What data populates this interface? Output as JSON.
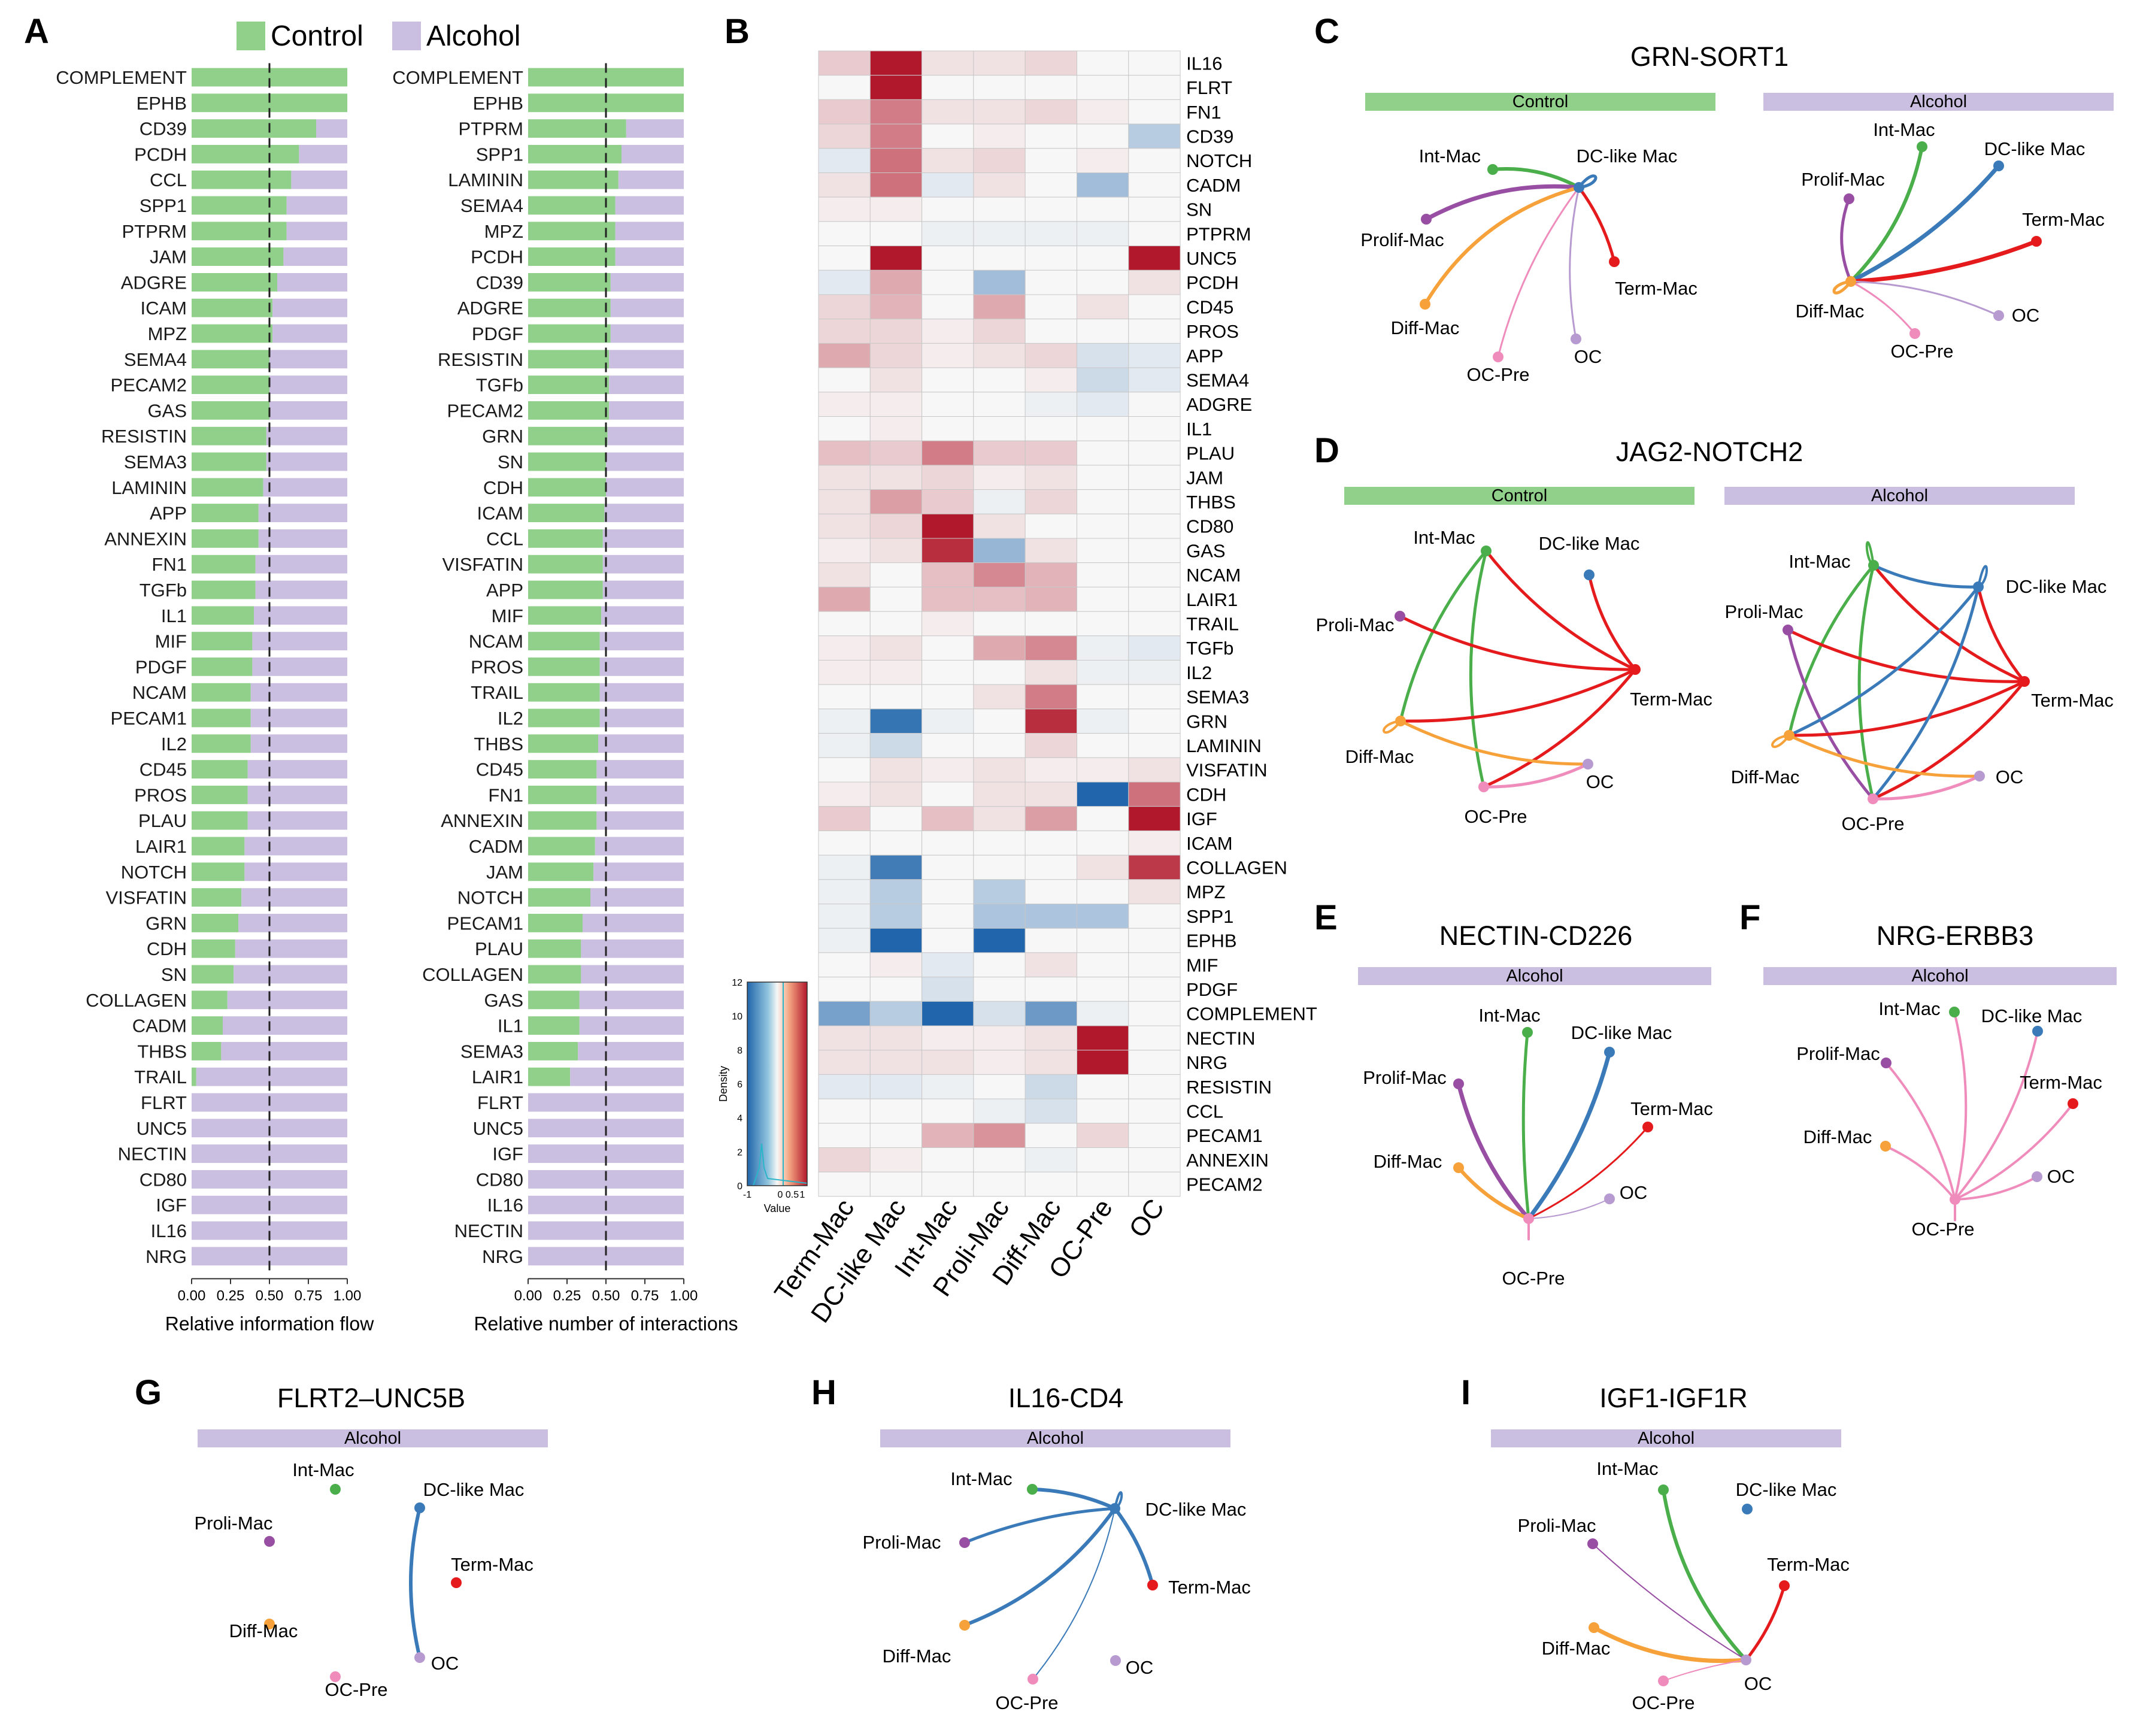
{
  "colors": {
    "control": "#90d08a",
    "alcohol": "#cabfe0",
    "net": {
      "Int-Mac": "#4aae4a",
      "DC-like Mac": "#3a7ab8",
      "Term-Mac": "#e41a1c",
      "Prolif-Mac": "#984ea3",
      "Proli-Mac": "#984ea3",
      "Diff-Mac": "#f6a13a",
      "OC-Pre": "#f08cbc",
      "OC": "#b79ad0"
    }
  },
  "legend": {
    "control": "Control",
    "alcohol": "Alcohol"
  },
  "panel_letters": {
    "A": "A",
    "B": "B",
    "C": "C",
    "D": "D",
    "E": "E",
    "F": "F",
    "G": "G",
    "H": "H",
    "I": "I"
  },
  "chart_data": [
    {
      "id": "A1",
      "type": "bar",
      "stacked": true,
      "orientation": "horizontal",
      "xlabel": "Relative information flow",
      "xlim": [
        0,
        1
      ],
      "xticks": [
        "0.00",
        "0.25",
        "0.50",
        "0.75",
        "1.00"
      ],
      "reference_line": 0.5,
      "categories": [
        "COMPLEMENT",
        "EPHB",
        "CD39",
        "PCDH",
        "CCL",
        "SPP1",
        "PTPRM",
        "JAM",
        "ADGRE",
        "ICAM",
        "MPZ",
        "SEMA4",
        "PECAM2",
        "GAS",
        "RESISTIN",
        "SEMA3",
        "LAMININ",
        "APP",
        "ANNEXIN",
        "FN1",
        "TGFb",
        "IL1",
        "MIF",
        "PDGF",
        "NCAM",
        "PECAM1",
        "IL2",
        "CD45",
        "PROS",
        "PLAU",
        "LAIR1",
        "NOTCH",
        "VISFATIN",
        "GRN",
        "CDH",
        "SN",
        "COLLAGEN",
        "CADM",
        "THBS",
        "TRAIL",
        "FLRT",
        "UNC5",
        "NECTIN",
        "CD80",
        "IGF",
        "IL16",
        "NRG"
      ],
      "series": [
        {
          "name": "Control",
          "values": [
            1.0,
            1.0,
            0.8,
            0.69,
            0.64,
            0.61,
            0.61,
            0.59,
            0.55,
            0.52,
            0.52,
            0.5,
            0.5,
            0.5,
            0.48,
            0.48,
            0.46,
            0.43,
            0.43,
            0.41,
            0.41,
            0.4,
            0.39,
            0.39,
            0.38,
            0.38,
            0.38,
            0.36,
            0.36,
            0.36,
            0.34,
            0.34,
            0.32,
            0.3,
            0.28,
            0.27,
            0.23,
            0.2,
            0.19,
            0.03,
            0,
            0,
            0,
            0,
            0,
            0,
            0
          ]
        },
        {
          "name": "Alcohol",
          "values": [
            0.0,
            0.0,
            0.2,
            0.31,
            0.36,
            0.39,
            0.39,
            0.41,
            0.45,
            0.48,
            0.48,
            0.5,
            0.5,
            0.5,
            0.52,
            0.52,
            0.54,
            0.57,
            0.57,
            0.59,
            0.59,
            0.6,
            0.61,
            0.61,
            0.62,
            0.62,
            0.62,
            0.64,
            0.64,
            0.64,
            0.66,
            0.66,
            0.68,
            0.7,
            0.72,
            0.73,
            0.77,
            0.8,
            0.81,
            0.97,
            1,
            1,
            1,
            1,
            1,
            1,
            1
          ]
        }
      ]
    },
    {
      "id": "A2",
      "type": "bar",
      "stacked": true,
      "orientation": "horizontal",
      "xlabel": "Relative number of interactions",
      "xlim": [
        0,
        1
      ],
      "xticks": [
        "0.00",
        "0.25",
        "0.50",
        "0.75",
        "1.00"
      ],
      "reference_line": 0.5,
      "categories": [
        "COMPLEMENT",
        "EPHB",
        "PTPRM",
        "SPP1",
        "LAMININ",
        "SEMA4",
        "MPZ",
        "PCDH",
        "CD39",
        "ADGRE",
        "PDGF",
        "RESISTIN",
        "TGFb",
        "PECAM2",
        "GRN",
        "SN",
        "CDH",
        "ICAM",
        "CCL",
        "VISFATIN",
        "APP",
        "MIF",
        "NCAM",
        "PROS",
        "TRAIL",
        "IL2",
        "THBS",
        "CD45",
        "FN1",
        "ANNEXIN",
        "CADM",
        "JAM",
        "NOTCH",
        "PECAM1",
        "PLAU",
        "COLLAGEN",
        "GAS",
        "IL1",
        "SEMA3",
        "LAIR1",
        "FLRT",
        "UNC5",
        "IGF",
        "CD80",
        "IL16",
        "NECTIN",
        "NRG"
      ],
      "series": [
        {
          "name": "Control",
          "values": [
            1.0,
            1.0,
            0.63,
            0.6,
            0.58,
            0.56,
            0.56,
            0.56,
            0.53,
            0.53,
            0.53,
            0.52,
            0.52,
            0.52,
            0.51,
            0.5,
            0.5,
            0.49,
            0.48,
            0.48,
            0.48,
            0.47,
            0.46,
            0.46,
            0.46,
            0.46,
            0.45,
            0.44,
            0.44,
            0.44,
            0.43,
            0.42,
            0.4,
            0.35,
            0.34,
            0.34,
            0.33,
            0.33,
            0.32,
            0.27,
            0,
            0,
            0,
            0,
            0,
            0,
            0
          ]
        },
        {
          "name": "Alcohol",
          "values": [
            0.0,
            0.0,
            0.37,
            0.4,
            0.42,
            0.44,
            0.44,
            0.44,
            0.47,
            0.47,
            0.47,
            0.48,
            0.48,
            0.48,
            0.49,
            0.5,
            0.5,
            0.51,
            0.52,
            0.52,
            0.52,
            0.53,
            0.54,
            0.54,
            0.54,
            0.54,
            0.55,
            0.56,
            0.56,
            0.56,
            0.57,
            0.58,
            0.6,
            0.65,
            0.66,
            0.66,
            0.67,
            0.67,
            0.68,
            0.73,
            1,
            1,
            1,
            1,
            1,
            1,
            1
          ]
        }
      ]
    },
    {
      "id": "B",
      "type": "heatmap",
      "columns": [
        "Term-Mac",
        "DC-like Mac",
        "Int-Mac",
        "Proli-Mac",
        "Diff-Mac",
        "OC-Pre",
        "OC"
      ],
      "rows": [
        "IL16",
        "FLRT",
        "FN1",
        "CD39",
        "NOTCH",
        "CADM",
        "SN",
        "PTPRM",
        "UNC5",
        "PCDH",
        "CD45",
        "PROS",
        "APP",
        "SEMA4",
        "ADGRE",
        "IL1",
        "PLAU",
        "JAM",
        "THBS",
        "CD80",
        "GAS",
        "NCAM",
        "LAIR1",
        "TRAIL",
        "TGFb",
        "IL2",
        "SEMA3",
        "GRN",
        "LAMININ",
        "VISFATIN",
        "CDH",
        "IGF",
        "ICAM",
        "COLLAGEN",
        "MPZ",
        "SPP1",
        "EPHB",
        "MIF",
        "PDGF",
        "COMPLEMENT",
        "NECTIN",
        "NRG",
        "RESISTIN",
        "CCL",
        "PECAM1",
        "ANNEXIN",
        "PECAM2"
      ],
      "values": [
        [
          0.2,
          1.0,
          0.1,
          0.1,
          0.15,
          0,
          0
        ],
        [
          0,
          1.0,
          0,
          0,
          0,
          0,
          0
        ],
        [
          0.2,
          0.55,
          0.1,
          0.1,
          0.15,
          0.05,
          0
        ],
        [
          0.15,
          0.55,
          0,
          0.05,
          0,
          0,
          -0.3
        ],
        [
          -0.1,
          0.6,
          0.1,
          0.15,
          0,
          0.05,
          0
        ],
        [
          0.1,
          0.6,
          -0.1,
          0.1,
          0,
          -0.4,
          0
        ],
        [
          0.05,
          0.05,
          0,
          0,
          0,
          0,
          0
        ],
        [
          0,
          0,
          -0.05,
          -0.05,
          -0.05,
          -0.05,
          0
        ],
        [
          0,
          1.0,
          0,
          0,
          0,
          0,
          1.0
        ],
        [
          -0.1,
          0.35,
          0,
          -0.4,
          0,
          0,
          0.1
        ],
        [
          0.15,
          0.3,
          0,
          0.35,
          0,
          0.1,
          0
        ],
        [
          0.15,
          0.15,
          0.05,
          0.15,
          0,
          0,
          0
        ],
        [
          0.35,
          0.15,
          0.05,
          0.1,
          0.15,
          -0.15,
          -0.1
        ],
        [
          0,
          0.1,
          0,
          0,
          0.05,
          -0.2,
          -0.1
        ],
        [
          0.05,
          0.05,
          0,
          0,
          -0.05,
          -0.1,
          0
        ],
        [
          0,
          0.05,
          0,
          0,
          0,
          0,
          0
        ],
        [
          0.25,
          0.2,
          0.55,
          0.2,
          0.2,
          0,
          0
        ],
        [
          0.1,
          0.1,
          0.15,
          0.05,
          0.1,
          0,
          0
        ],
        [
          0.1,
          0.4,
          0.2,
          -0.05,
          0.15,
          0,
          0
        ],
        [
          0.1,
          0.15,
          1.0,
          0.1,
          0,
          0,
          0
        ],
        [
          0.05,
          0.1,
          0.9,
          -0.45,
          0.1,
          0,
          0
        ],
        [
          0.1,
          0,
          0.25,
          0.5,
          0.3,
          0,
          0
        ],
        [
          0.35,
          0,
          0.25,
          0.25,
          0.3,
          0,
          0
        ],
        [
          0,
          0,
          0.05,
          0,
          0,
          0,
          0
        ],
        [
          0.05,
          0.1,
          0,
          0.35,
          0.5,
          -0.05,
          -0.1
        ],
        [
          0.05,
          0.05,
          0,
          0,
          0.1,
          -0.05,
          -0.05
        ],
        [
          0,
          0,
          0,
          0.1,
          0.55,
          0,
          0
        ],
        [
          -0.05,
          -0.9,
          -0.05,
          0,
          0.9,
          -0.05,
          0
        ],
        [
          -0.05,
          -0.2,
          0,
          0,
          0.15,
          0,
          0
        ],
        [
          0,
          0.1,
          0.05,
          0.1,
          0.05,
          0.05,
          0.1
        ],
        [
          0.05,
          0.1,
          0,
          0.1,
          0.1,
          -1.0,
          0.6
        ],
        [
          0.2,
          0,
          0.25,
          0.1,
          0.4,
          0,
          1.0
        ],
        [
          0,
          0,
          0,
          0,
          0,
          0,
          0.05
        ],
        [
          -0.05,
          -0.85,
          0,
          0,
          0,
          0.1,
          0.85
        ],
        [
          -0.05,
          -0.3,
          0,
          -0.3,
          0,
          0,
          0.1
        ],
        [
          -0.05,
          -0.3,
          0,
          -0.35,
          -0.35,
          -0.35,
          0
        ],
        [
          -0.05,
          -1.0,
          0,
          -1.0,
          0,
          0,
          0
        ],
        [
          0,
          0.05,
          -0.1,
          0,
          0.1,
          0,
          0
        ],
        [
          0,
          0,
          -0.15,
          0,
          0,
          0,
          0
        ],
        [
          -0.6,
          -0.3,
          -1.0,
          -0.15,
          -0.65,
          -0.05,
          0
        ],
        [
          0.1,
          0.1,
          0.05,
          0.05,
          0.1,
          1.0,
          0
        ],
        [
          0.1,
          0.1,
          0.1,
          0.05,
          0.1,
          1.0,
          0
        ],
        [
          -0.1,
          -0.1,
          -0.05,
          0,
          -0.2,
          0,
          0
        ],
        [
          0,
          0,
          0,
          -0.05,
          -0.15,
          0,
          0
        ],
        [
          0,
          0,
          0.3,
          0.45,
          0,
          0.15,
          0
        ],
        [
          0.15,
          0.05,
          0,
          0,
          -0.05,
          0,
          0
        ],
        [
          0,
          0,
          0,
          0,
          0,
          0,
          0
        ]
      ],
      "colorkey": {
        "ylabel": "Density",
        "xlabel": "Value",
        "yticks": [
          "0",
          "2",
          "4",
          "6",
          "8",
          "10",
          "12"
        ],
        "xticks": [
          "-1",
          "0",
          "0.5",
          "1"
        ]
      }
    },
    {
      "id": "C",
      "type": "network",
      "title": "GRN-SORT1",
      "groups": [
        {
          "label": "Control",
          "target": "DC-like Mac",
          "edges": [
            {
              "source": "Int-Mac",
              "w": 1
            },
            {
              "source": "Prolif-Mac",
              "w": 1.3
            },
            {
              "source": "Diff-Mac",
              "w": 1.3
            },
            {
              "source": "OC-Pre",
              "w": 0.6
            },
            {
              "source": "OC",
              "w": 0.6
            },
            {
              "source": "Term-Mac",
              "w": 1
            },
            {
              "source": "DC-like Mac",
              "w": 1.2
            }
          ]
        },
        {
          "label": "Alcohol",
          "target": "Diff-Mac",
          "edges": [
            {
              "source": "Int-Mac",
              "w": 1.3
            },
            {
              "source": "DC-like Mac",
              "w": 1.5
            },
            {
              "source": "Term-Mac",
              "w": 1.5
            },
            {
              "source": "Prolif-Mac",
              "w": 1
            },
            {
              "source": "OC",
              "w": 0.6
            },
            {
              "source": "OC-Pre",
              "w": 0.6
            },
            {
              "source": "Diff-Mac",
              "w": 1
            }
          ]
        }
      ]
    },
    {
      "id": "D",
      "type": "network",
      "title": "JAG2-NOTCH2",
      "groups": [
        {
          "label": "Control",
          "edges": [
            [
              "Int-Mac",
              "Term-Mac"
            ],
            [
              "Int-Mac",
              "Diff-Mac"
            ],
            [
              "Int-Mac",
              "OC-Pre"
            ],
            [
              "Proli-Mac",
              "Term-Mac"
            ],
            [
              "Diff-Mac",
              "Term-Mac"
            ],
            [
              "OC-Pre",
              "Term-Mac"
            ],
            [
              "DC-like Mac",
              "Term-Mac"
            ],
            [
              "Diff-Mac",
              "OC"
            ],
            [
              "OC-Pre",
              "OC"
            ]
          ]
        },
        {
          "label": "Alcohol",
          "edges": [
            [
              "Int-Mac",
              "Term-Mac"
            ],
            [
              "Int-Mac",
              "Diff-Mac"
            ],
            [
              "Int-Mac",
              "OC-Pre"
            ],
            [
              "Int-Mac",
              "DC-like Mac"
            ],
            [
              "Proli-Mac",
              "Term-Mac"
            ],
            [
              "Proli-Mac",
              "OC-Pre"
            ],
            [
              "Diff-Mac",
              "DC-like Mac"
            ],
            [
              "Diff-Mac",
              "Term-Mac"
            ],
            [
              "OC-Pre",
              "Term-Mac"
            ],
            [
              "OC-Pre",
              "DC-like Mac"
            ],
            [
              "DC-like Mac",
              "Term-Mac"
            ],
            [
              "Diff-Mac",
              "OC"
            ],
            [
              "OC-Pre",
              "OC"
            ]
          ]
        }
      ]
    },
    {
      "id": "E",
      "type": "network",
      "title": "NECTIN-CD226",
      "groups": [
        {
          "label": "Alcohol",
          "target": "OC-Pre",
          "edges": [
            [
              "Int-Mac",
              "OC-Pre"
            ],
            [
              "DC-like Mac",
              "OC-Pre"
            ],
            [
              "Prolif-Mac",
              "OC-Pre"
            ],
            [
              "Diff-Mac",
              "OC-Pre"
            ],
            [
              "Term-Mac",
              "OC-Pre"
            ],
            [
              "OC",
              "OC-Pre"
            ]
          ]
        }
      ]
    },
    {
      "id": "F",
      "type": "network",
      "title": "NRG-ERBB3",
      "groups": [
        {
          "label": "Alcohol",
          "source": "OC-Pre",
          "edges": [
            [
              "OC-Pre",
              "Int-Mac"
            ],
            [
              "OC-Pre",
              "DC-like Mac"
            ],
            [
              "OC-Pre",
              "Prolif-Mac"
            ],
            [
              "OC-Pre",
              "Diff-Mac"
            ],
            [
              "OC-Pre",
              "Term-Mac"
            ],
            [
              "OC-Pre",
              "OC"
            ]
          ]
        }
      ]
    },
    {
      "id": "G",
      "type": "network",
      "title": "FLRT2–UNC5B",
      "groups": [
        {
          "label": "Alcohol",
          "edges": [
            [
              "DC-like Mac",
              "OC"
            ]
          ]
        }
      ]
    },
    {
      "id": "H",
      "type": "network",
      "title": "IL16-CD4",
      "groups": [
        {
          "label": "Alcohol",
          "edges": [
            [
              "DC-like Mac",
              "Int-Mac"
            ],
            [
              "DC-like Mac",
              "Proli-Mac"
            ],
            [
              "DC-like Mac",
              "Diff-Mac"
            ],
            [
              "DC-like Mac",
              "OC-Pre"
            ],
            [
              "DC-like Mac",
              "Term-Mac"
            ]
          ]
        }
      ]
    },
    {
      "id": "I",
      "type": "network",
      "title": "IGF1-IGF1R",
      "groups": [
        {
          "label": "Alcohol",
          "target": "OC",
          "edges": [
            [
              "Int-Mac",
              "OC"
            ],
            [
              "Proli-Mac",
              "OC"
            ],
            [
              "Diff-Mac",
              "OC"
            ],
            [
              "Term-Mac",
              "OC"
            ],
            [
              "OC-Pre",
              "OC"
            ]
          ]
        }
      ]
    }
  ]
}
